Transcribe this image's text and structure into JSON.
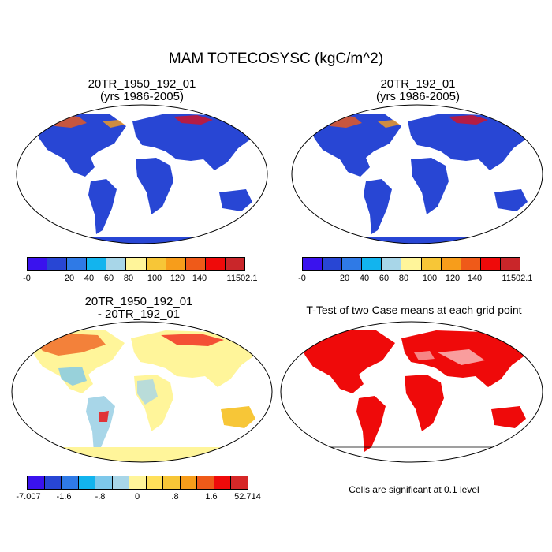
{
  "figure": {
    "title": "MAM TOTECOSYSC (kgC/m^2)"
  },
  "panels": {
    "top_left": {
      "title_line1": "20TR_1950_192_01",
      "title_line2": "(yrs 1986-2005)"
    },
    "top_right": {
      "title_line1": "20TR_192_01",
      "title_line2": "(yrs 1986-2005)"
    },
    "bottom_left": {
      "title_line1": "20TR_1950_192_01",
      "title_line2": "- 20TR_192_01"
    },
    "bottom_right": {
      "title": "T-Test of two Case means at each grid point",
      "footnote": "Cells are significant at 0.1 level"
    }
  },
  "colorbars": {
    "abs": {
      "colors": [
        "#3a12ee",
        "#2846d4",
        "#2f7ae6",
        "#12b4ee",
        "#a8d6e8",
        "#fff59a",
        "#f7c637",
        "#f79d1b",
        "#ef5a19",
        "#ef0a0a",
        "#c9262a"
      ],
      "labels": [
        "-0",
        "20",
        "40",
        "60",
        "80",
        "100",
        "120",
        "140",
        "11502.1"
      ]
    },
    "diff": {
      "colors": [
        "#3a12ee",
        "#2846d4",
        "#2f7ae6",
        "#12b4ee",
        "#7ec8ea",
        "#a8d6e8",
        "#fff59a",
        "#ffe05a",
        "#f7c637",
        "#f79d1b",
        "#ef5a19",
        "#ef0a0a",
        "#d62828"
      ],
      "labels": [
        "-7.007",
        "-1.6",
        "-.8",
        "0",
        ".8",
        "1.6",
        "52.714"
      ]
    }
  },
  "map_colors": {
    "ocean": "#ffffff",
    "land_base_abs": "#2846d4",
    "land_diff_base": "#fff59a",
    "ttest_land": "#ef0a0a"
  }
}
